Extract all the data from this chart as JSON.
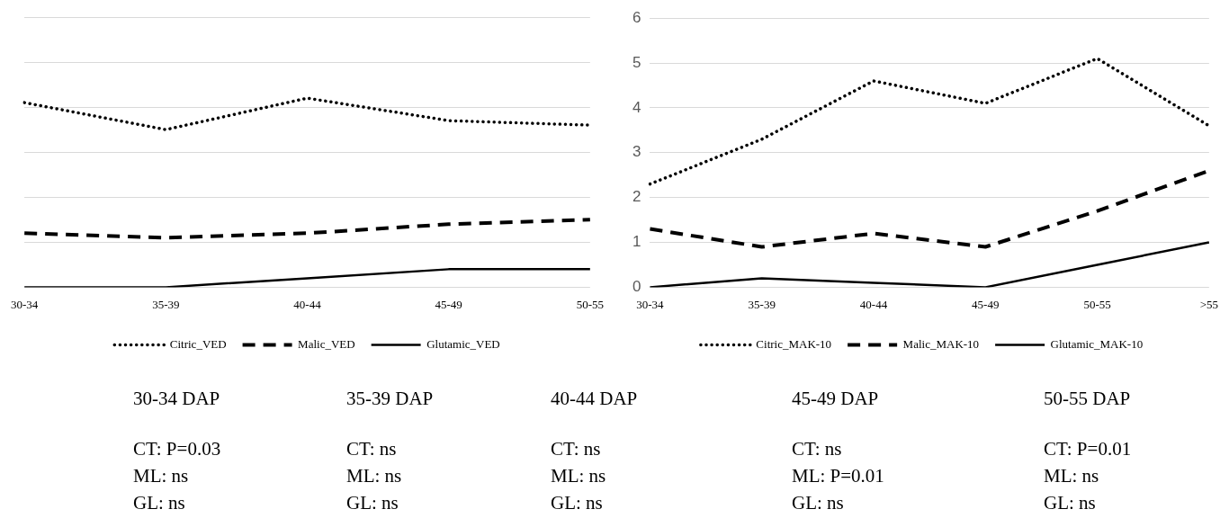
{
  "chart_data": [
    {
      "type": "line",
      "categories": [
        "30-34",
        "35-39",
        "40-44",
        "45-49",
        "50-55"
      ],
      "ylim": [
        0,
        6
      ],
      "yticks": [
        0,
        1,
        2,
        3,
        4,
        5,
        6
      ],
      "tick_labels": "x",
      "grid": "y",
      "legend": "bottom",
      "marker": "none",
      "series": [
        {
          "name": "Citric_VED",
          "color": "#000000",
          "line_style": "dotted",
          "values": [
            4.1,
            3.5,
            4.2,
            3.7,
            3.6
          ]
        },
        {
          "name": "Malic_VED",
          "color": "#000000",
          "line_style": "dashed",
          "values": [
            1.2,
            1.1,
            1.2,
            1.4,
            1.5
          ]
        },
        {
          "name": "Glutamic_VED",
          "color": "#000000",
          "line_style": "solid",
          "values": [
            0,
            0,
            0.2,
            0.4,
            0.4
          ]
        }
      ]
    },
    {
      "type": "line",
      "categories": [
        "30-34",
        "35-39",
        "40-44",
        "45-49",
        "50-55",
        ">55"
      ],
      "ylim": [
        0,
        6
      ],
      "yticks": [
        0,
        1,
        2,
        3,
        4,
        5,
        6
      ],
      "grid": "y",
      "legend": "bottom",
      "marker": "none",
      "series": [
        {
          "name": "Citric_MAK-10",
          "color": "#000000",
          "line_style": "dotted",
          "values": [
            2.3,
            3.3,
            4.6,
            4.1,
            5.1,
            3.6
          ]
        },
        {
          "name": "Malic_MAK-10",
          "color": "#000000",
          "line_style": "dashed",
          "values": [
            1.3,
            0.9,
            1.2,
            0.9,
            1.7,
            2.6
          ]
        },
        {
          "name": "Glutamic_MAK-10",
          "color": "#000000",
          "line_style": "solid",
          "values": [
            0,
            0.2,
            0.1,
            0,
            0.5,
            1.0
          ]
        }
      ]
    },
    {
      "type": "other",
      "annotations": [
        "30-34 DAP",
        "CT: P=0.03",
        "ML: ns",
        "GL: ns",
        "35-39 DAP",
        "CT: ns",
        "ML: ns",
        "GL: ns",
        "40-44 DAP",
        "CT: ns",
        "ML: ns",
        "GL: ns",
        "45-49 DAP",
        "CT: ns",
        "ML: P=0.01",
        "GL: ns",
        "50-55 DAP",
        "CT: P=0.01",
        "ML: ns",
        "GL: ns"
      ]
    }
  ]
}
